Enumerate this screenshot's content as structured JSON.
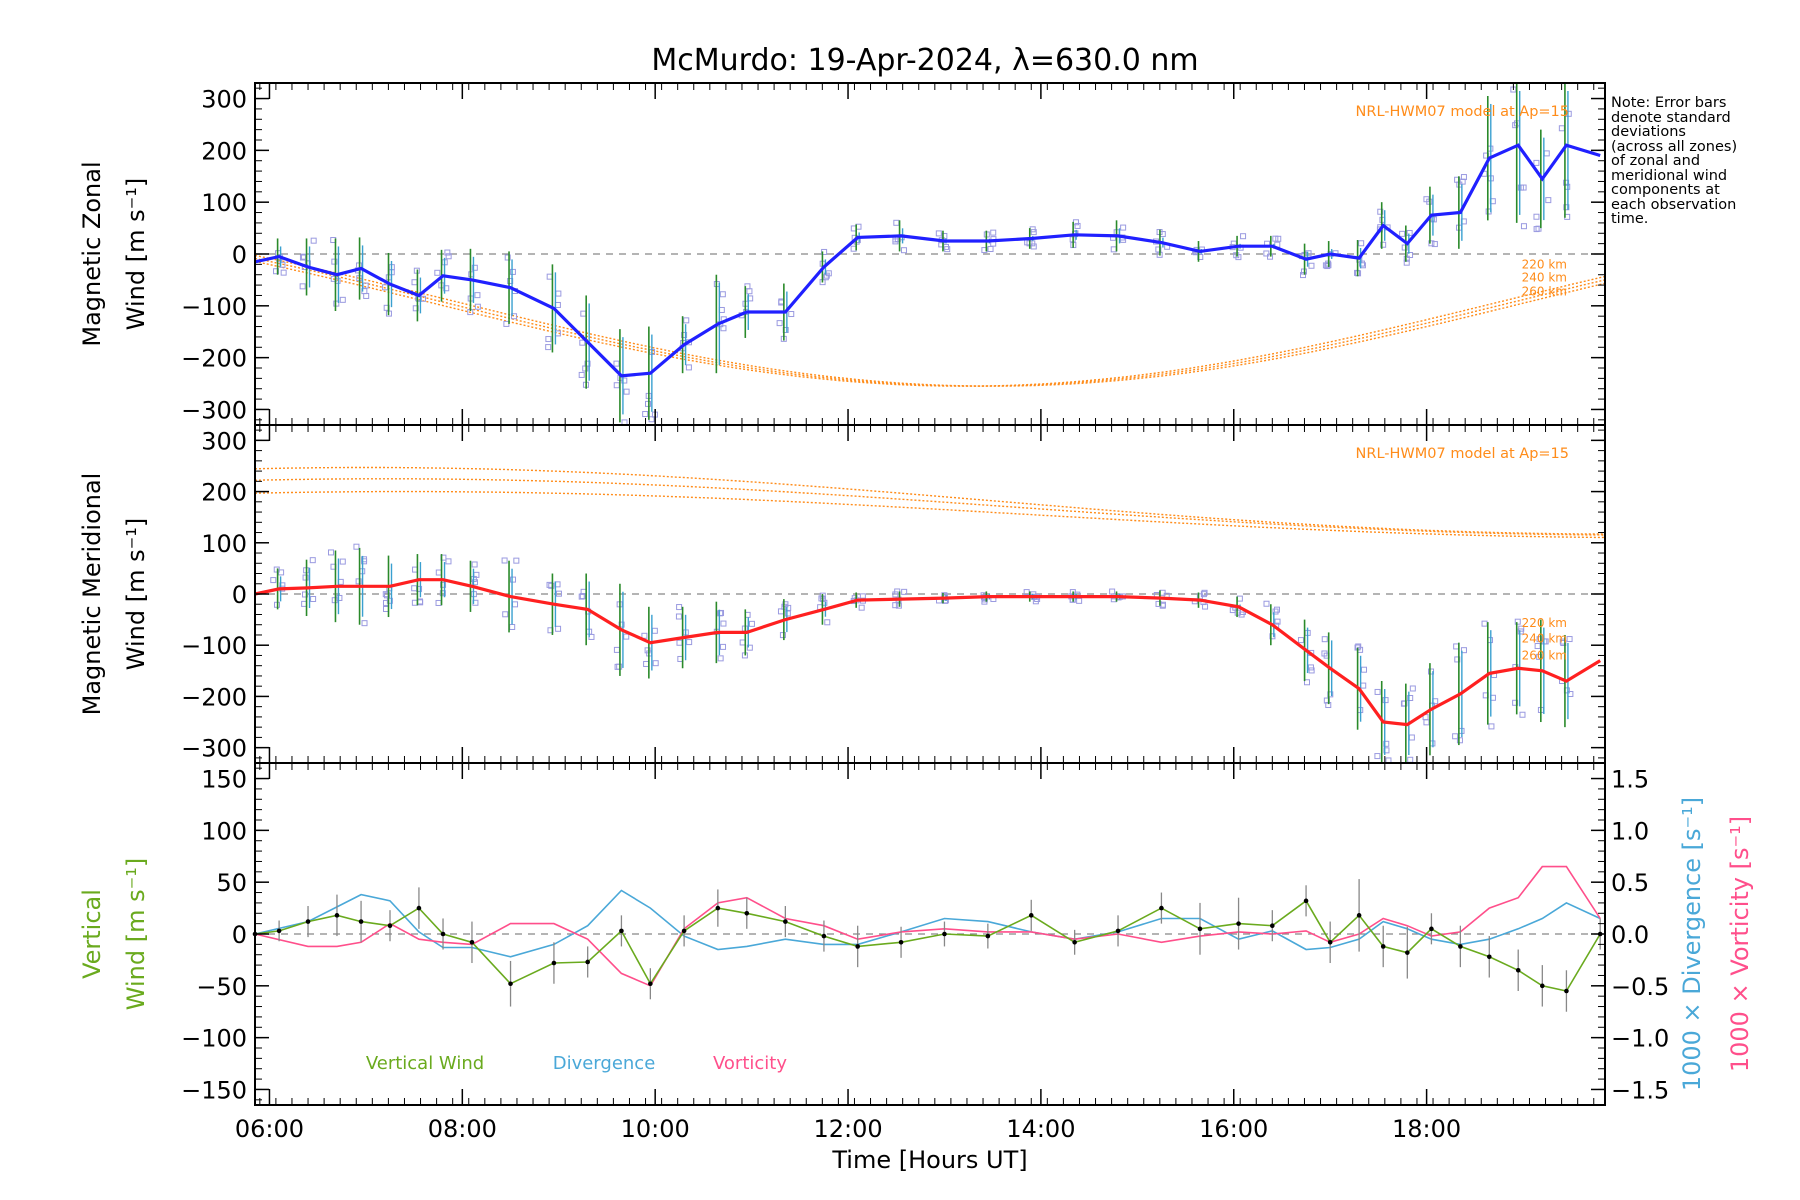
{
  "chart_data": {
    "type": "line",
    "title": "McMurdo: 19-Apr-2024, λ=630.0 nm",
    "xlabel": "Time [Hours UT]",
    "x_ticks": [
      "06:00",
      "08:00",
      "10:00",
      "12:00",
      "14:00",
      "16:00",
      "18:00"
    ],
    "xlim": [
      5.85,
      19.85
    ],
    "note": "Note: Error bars\ndenote standard\ndeviations\n(across all zones)\nof zonal and\nmeridional wind\ncomponents at\neach observation\ntime.",
    "colors": {
      "zonal": "#2020ff",
      "meridional": "#ff2020",
      "model": "#ff8c1a",
      "vertical": "#6aaa1e",
      "divergence": "#4aa8d8",
      "vorticity": "#ff4f8b",
      "zones": "#9a9ae0"
    },
    "panels": [
      {
        "name": "zonal",
        "ylabel": [
          "Magnetic Zonal",
          "Wind [m s⁻¹]"
        ],
        "ylim": [
          -330,
          330
        ],
        "y_ticks": [
          "300",
          "200",
          "100",
          "0",
          "−100",
          "−200",
          "−300"
        ],
        "model_label": "NRL-HWM07 model at Ap=15",
        "model_altitudes": [
          "220 km",
          "240 km",
          "260 km"
        ],
        "x": [
          5.85,
          6.1,
          6.4,
          6.7,
          6.95,
          7.25,
          7.55,
          7.8,
          8.1,
          8.5,
          8.95,
          9.3,
          9.65,
          9.95,
          10.3,
          10.65,
          10.95,
          11.35,
          11.75,
          12.1,
          12.55,
          13.0,
          13.45,
          13.9,
          14.35,
          14.8,
          15.25,
          15.65,
          16.05,
          16.4,
          16.75,
          17.0,
          17.3,
          17.55,
          17.8,
          18.05,
          18.35,
          18.65,
          18.95,
          19.2,
          19.45,
          19.8
        ],
        "y": [
          -15,
          -5,
          -25,
          -40,
          -28,
          -58,
          -80,
          -42,
          -50,
          -65,
          -105,
          -170,
          -235,
          -230,
          -175,
          -135,
          -112,
          -112,
          -25,
          32,
          35,
          25,
          25,
          30,
          37,
          35,
          22,
          5,
          15,
          15,
          -10,
          0,
          -8,
          55,
          20,
          75,
          80,
          185,
          210,
          145,
          210,
          190
        ],
        "err": [
          30,
          35,
          55,
          70,
          60,
          60,
          50,
          50,
          60,
          70,
          85,
          90,
          90,
          90,
          55,
          95,
          50,
          55,
          30,
          25,
          30,
          20,
          20,
          20,
          25,
          30,
          25,
          20,
          20,
          20,
          30,
          25,
          35,
          45,
          35,
          55,
          70,
          120,
          150,
          95,
          140,
          85
        ],
        "model": [
          [
            -90,
            50,
            20,
            0.1
          ],
          [
            -110,
            55,
            25,
            0.1
          ],
          [
            -130,
            60,
            30,
            0.1
          ]
        ],
        "model_label_y": [
          -18,
          -43,
          -70
        ]
      },
      {
        "name": "meridional",
        "ylabel": [
          "Magnetic Meridional",
          "Wind [m s⁻¹]"
        ],
        "ylim": [
          -330,
          330
        ],
        "y_ticks": [
          "300",
          "200",
          "100",
          "0",
          "−100",
          "−200",
          "−300"
        ],
        "model_label": "NRL-HWM07 model at Ap=15",
        "model_altitudes": [
          "220 km",
          "240 km",
          "260 km"
        ],
        "x": [
          5.85,
          6.1,
          6.4,
          6.7,
          6.95,
          7.25,
          7.55,
          7.8,
          8.1,
          8.5,
          8.95,
          9.3,
          9.65,
          9.95,
          10.3,
          10.65,
          10.95,
          11.35,
          11.75,
          12.1,
          12.55,
          13.0,
          13.45,
          13.9,
          14.35,
          14.8,
          15.25,
          15.65,
          16.05,
          16.4,
          16.75,
          17.0,
          17.3,
          17.55,
          17.8,
          18.05,
          18.35,
          18.65,
          18.95,
          19.2,
          19.45,
          19.8
        ],
        "y": [
          0,
          10,
          12,
          15,
          15,
          15,
          28,
          28,
          15,
          -5,
          -20,
          -30,
          -70,
          -95,
          -85,
          -75,
          -75,
          -50,
          -30,
          -12,
          -10,
          -8,
          -5,
          -5,
          -5,
          -5,
          -8,
          -12,
          -25,
          -60,
          -110,
          -145,
          -185,
          -250,
          -255,
          -225,
          -195,
          -155,
          -145,
          -150,
          -170,
          -130
        ],
        "err": [
          30,
          40,
          55,
          70,
          75,
          60,
          50,
          50,
          50,
          70,
          60,
          70,
          90,
          70,
          60,
          60,
          45,
          40,
          30,
          15,
          15,
          10,
          10,
          10,
          10,
          10,
          15,
          15,
          20,
          40,
          60,
          70,
          80,
          80,
          80,
          90,
          100,
          100,
          90,
          100,
          90,
          90
        ],
        "model": [
          [
            182,
            65,
            7.0,
            1.8
          ],
          [
            170,
            55,
            7.2,
            1.8
          ],
          [
            155,
            45,
            7.4,
            1.8
          ]
        ],
        "model_label_y": [
          -55,
          -85,
          -118
        ]
      }
    ],
    "vertical_panel": {
      "ylabel_left": [
        "Vertical",
        "Wind [m s⁻¹]"
      ],
      "ylim": [
        -165,
        165
      ],
      "y_ticks": [
        "150",
        "100",
        "50",
        "0",
        "−50",
        "−100",
        "−150"
      ],
      "y2_ticks": [
        "1.5",
        "1.0",
        "0.5",
        "0.0",
        "−0.5",
        "−1.0",
        "−1.5"
      ],
      "y2_labels": [
        "1000 × Divergence [s⁻¹]",
        "1000 × Vorticity [s⁻¹]"
      ],
      "legend": [
        "Vertical Wind",
        "Divergence",
        "Vorticity"
      ],
      "vertical": {
        "x": [
          5.85,
          6.1,
          6.4,
          6.7,
          6.95,
          7.25,
          7.55,
          7.8,
          8.1,
          8.5,
          8.95,
          9.3,
          9.65,
          9.95,
          10.3,
          10.65,
          10.95,
          11.35,
          11.75,
          12.1,
          12.55,
          13.0,
          13.45,
          13.9,
          14.35,
          14.8,
          15.25,
          15.65,
          16.05,
          16.4,
          16.75,
          17.0,
          17.3,
          17.55,
          17.8,
          18.05,
          18.35,
          18.65,
          18.95,
          19.2,
          19.45,
          19.8
        ],
        "y": [
          0,
          3,
          12,
          18,
          12,
          8,
          25,
          0,
          -8,
          -48,
          -28,
          -27,
          3,
          -48,
          3,
          25,
          20,
          12,
          -2,
          -12,
          -8,
          0,
          -2,
          18,
          -8,
          3,
          25,
          5,
          10,
          8,
          32,
          -8,
          18,
          -12,
          -18,
          5,
          -12,
          -22,
          -35,
          -50,
          -55,
          0
        ],
        "err": [
          10,
          10,
          15,
          20,
          20,
          15,
          20,
          15,
          20,
          22,
          20,
          15,
          15,
          15,
          15,
          18,
          15,
          15,
          15,
          20,
          15,
          12,
          12,
          15,
          12,
          15,
          15,
          25,
          25,
          15,
          15,
          20,
          35,
          20,
          25,
          15,
          20,
          20,
          20,
          20,
          20,
          15
        ]
      },
      "divergence": {
        "x": [
          5.85,
          6.4,
          6.95,
          7.25,
          7.55,
          7.8,
          8.1,
          8.5,
          8.95,
          9.3,
          9.65,
          9.95,
          10.3,
          10.65,
          10.95,
          11.35,
          11.75,
          12.1,
          12.55,
          13.0,
          13.45,
          13.9,
          14.35,
          14.8,
          15.25,
          15.65,
          16.05,
          16.4,
          16.75,
          17.0,
          17.3,
          17.55,
          17.8,
          18.05,
          18.35,
          18.65,
          18.95,
          19.2,
          19.45,
          19.8
        ],
        "y": [
          0.0,
          0.12,
          0.38,
          0.32,
          0.02,
          -0.13,
          -0.13,
          -0.22,
          -0.1,
          0.08,
          0.42,
          0.25,
          -0.02,
          -0.15,
          -0.12,
          -0.05,
          -0.1,
          -0.1,
          0.02,
          0.15,
          0.12,
          0.02,
          -0.05,
          0.02,
          0.15,
          0.15,
          -0.05,
          0.03,
          -0.15,
          -0.13,
          -0.05,
          0.12,
          0.05,
          -0.05,
          -0.1,
          -0.05,
          0.05,
          0.15,
          0.3,
          0.15
        ]
      },
      "vorticity": {
        "x": [
          5.85,
          6.4,
          6.7,
          6.95,
          7.25,
          7.55,
          7.8,
          8.1,
          8.5,
          8.95,
          9.3,
          9.65,
          9.95,
          10.3,
          10.65,
          10.95,
          11.35,
          11.75,
          12.1,
          12.55,
          13.0,
          13.45,
          13.9,
          14.35,
          14.8,
          15.25,
          15.65,
          16.05,
          16.4,
          16.75,
          17.0,
          17.3,
          17.55,
          17.8,
          18.05,
          18.35,
          18.65,
          18.95,
          19.2,
          19.45,
          19.8
        ],
        "y": [
          0.0,
          -0.12,
          -0.12,
          -0.08,
          0.1,
          -0.05,
          -0.08,
          -0.1,
          0.1,
          0.1,
          -0.05,
          -0.38,
          -0.5,
          0.05,
          0.3,
          0.35,
          0.15,
          0.08,
          -0.05,
          0.02,
          0.05,
          0.02,
          0.02,
          -0.05,
          0.0,
          -0.08,
          -0.02,
          0.02,
          0.0,
          0.03,
          -0.08,
          0.0,
          0.15,
          0.08,
          -0.02,
          0.02,
          0.25,
          0.35,
          0.65,
          0.65,
          0.15
        ]
      },
      "y2lim": [
        -1.65,
        1.65
      ]
    }
  }
}
